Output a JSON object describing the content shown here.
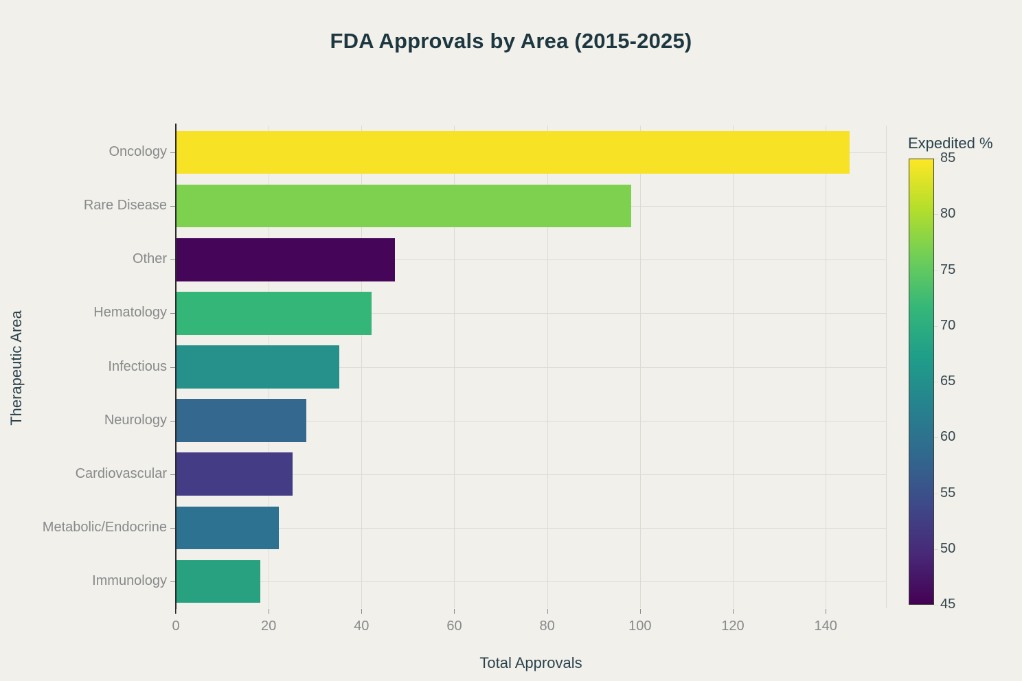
{
  "title": "FDA Approvals by Area (2015-2025)",
  "chart_data": {
    "type": "bar",
    "orientation": "horizontal",
    "title": "FDA Approvals by Area (2015-2025)",
    "xlabel": "Total Approvals",
    "ylabel": "Therapeutic Area",
    "xlim": [
      0,
      153
    ],
    "x_ticks": [
      0,
      20,
      40,
      60,
      80,
      100,
      120,
      140
    ],
    "grid": true,
    "categories": [
      "Oncology",
      "Rare Disease",
      "Other",
      "Hematology",
      "Infectious",
      "Neurology",
      "Cardiovascular",
      "Metabolic/Endocrine",
      "Immunology"
    ],
    "values": [
      145,
      98,
      47,
      42,
      35,
      28,
      25,
      22,
      18
    ],
    "bar_colors": [
      "#f7e225",
      "#7ed14e",
      "#450559",
      "#35b679",
      "#26918a",
      "#34688e",
      "#443c84",
      "#2d7391",
      "#28a180"
    ],
    "color_by": "Expedited %",
    "expedited_pct_estimated": [
      85,
      77,
      46,
      72,
      65,
      58,
      52,
      60,
      69
    ],
    "colorbar": {
      "title": "Expedited %",
      "min": 45,
      "max": 85,
      "ticks": [
        85,
        80,
        75,
        70,
        65,
        60,
        55,
        50,
        45
      ],
      "gradient_bottom_to_top": [
        "#440154",
        "#482878",
        "#3e4989",
        "#31688e",
        "#26828e",
        "#1f9e89",
        "#35b779",
        "#6ece58",
        "#b5de2b",
        "#fde725"
      ]
    }
  },
  "colors": {
    "background": "#f1f0ea",
    "title_text": "#1d3740",
    "axis_title_text": "#2a424c",
    "tick_text": "#87898b",
    "colorbar_tick_text": "#35464e",
    "grid": "#dcdbd3",
    "axis_line": "#2b2b2b"
  }
}
